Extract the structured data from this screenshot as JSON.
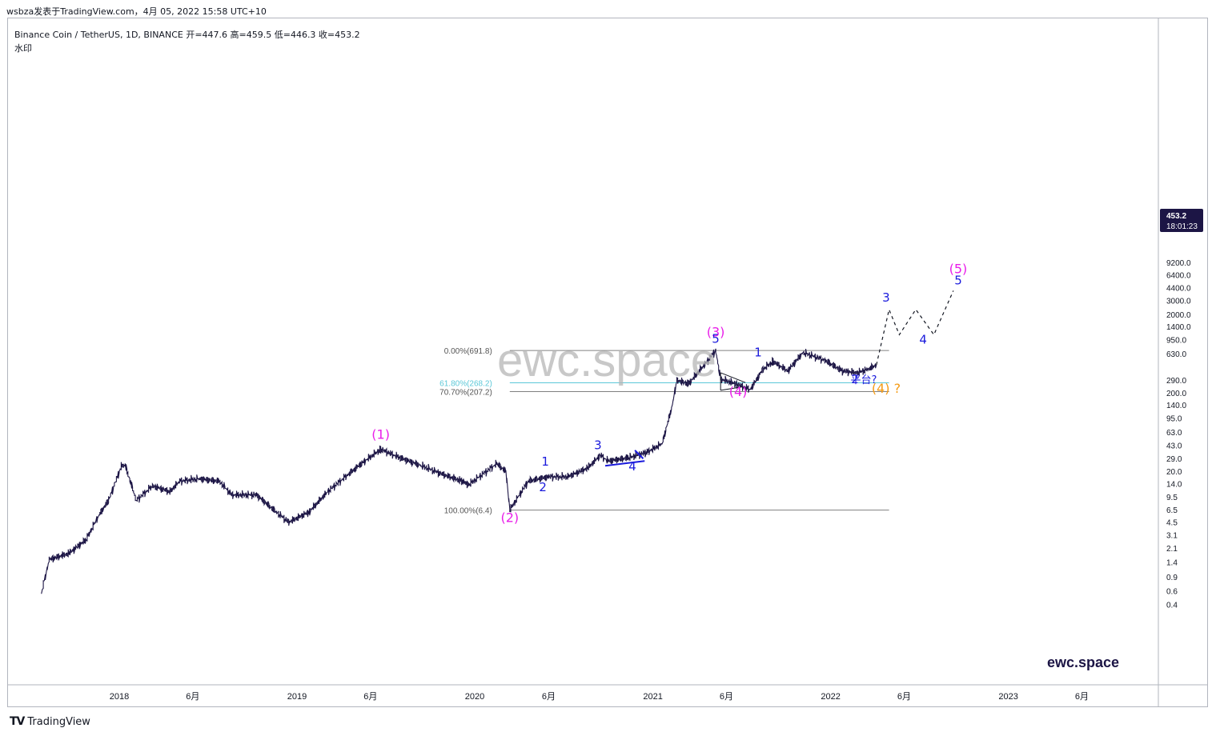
{
  "header": {
    "publish_info": "wsbza发表于TradingView.com，4月 05, 2022 15:58 UTC+10",
    "symbol_line": "Binance Coin / TetherUS, 1D, BINANCE  开=447.6  高=459.5  低=446.3  收=453.2",
    "sub_label": "水印"
  },
  "footer": {
    "brand": "TradingView",
    "logo": "TV"
  },
  "watermark": {
    "center_text": "ewc.space",
    "corner_text": "ewc.space"
  },
  "price_badge": {
    "price": "453.2",
    "countdown": "18:01:23"
  },
  "colors": {
    "candles": "#1c1545",
    "grid_line": "#808080",
    "fib_cyan": "#5bc8d8",
    "magenta": "#e91ee9",
    "blue": "#1a1adc",
    "orange": "#f59b14",
    "badge_bg": "#1c1545"
  },
  "chart_data": {
    "type": "line",
    "scale": "log",
    "title": "Binance Coin / TetherUS, 1D, BINANCE",
    "ylim": [
      0.3,
      11000
    ],
    "y_ticks": [
      "9200.0",
      "6400.0",
      "4400.0",
      "3000.0",
      "2000.0",
      "1400.0",
      "950.0",
      "630.0",
      "290.0",
      "200.0",
      "140.0",
      "95.0",
      "63.0",
      "43.0",
      "29.0",
      "20.0",
      "14.0",
      "9.5",
      "6.5",
      "4.5",
      "3.1",
      "2.1",
      "1.4",
      "0.9",
      "0.6",
      "0.4"
    ],
    "x_ticks": [
      "2018",
      "6月",
      "2019",
      "6月",
      "2020",
      "6月",
      "2021",
      "6月",
      "2022",
      "6月",
      "2023",
      "6月"
    ],
    "series": [
      {
        "values_note": "",
        "points": [
          [
            "2017-07-25",
            0.55
          ],
          [
            "2017-08-10",
            1.5
          ],
          [
            "2017-09-20",
            1.8
          ],
          [
            "2017-10-25",
            2.7
          ],
          [
            "2017-11-20",
            5.5
          ],
          [
            "2017-12-10",
            8.5
          ],
          [
            "2018-01-05",
            23
          ],
          [
            "2018-01-13",
            24
          ],
          [
            "2018-02-05",
            8.5
          ],
          [
            "2018-03-10",
            13
          ],
          [
            "2018-04-15",
            11
          ],
          [
            "2018-05-05",
            15
          ],
          [
            "2018-06-15",
            16
          ],
          [
            "2018-07-25",
            15
          ],
          [
            "2018-08-20",
            10
          ],
          [
            "2018-10-10",
            10
          ],
          [
            "2018-11-20",
            6
          ],
          [
            "2018-12-15",
            4.5
          ],
          [
            "2019-01-25",
            6
          ],
          [
            "2019-03-05",
            11
          ],
          [
            "2019-04-15",
            18
          ],
          [
            "2019-05-20",
            27
          ],
          [
            "2019-06-22",
            38
          ],
          [
            "2019-07-30",
            30
          ],
          [
            "2019-09-10",
            24
          ],
          [
            "2019-10-20",
            19
          ],
          [
            "2019-12-05",
            15
          ],
          [
            "2019-12-20",
            13.5
          ],
          [
            "2020-02-15",
            25
          ],
          [
            "2020-03-05",
            20
          ],
          [
            "2020-03-13",
            6.4
          ],
          [
            "2020-04-20",
            15
          ],
          [
            "2020-06-01",
            17
          ],
          [
            "2020-07-10",
            17
          ],
          [
            "2020-08-20",
            22
          ],
          [
            "2020-09-15",
            32
          ],
          [
            "2020-10-01",
            27
          ],
          [
            "2020-11-15",
            30
          ],
          [
            "2020-12-20",
            35
          ],
          [
            "2021-01-20",
            45
          ],
          [
            "2021-02-10",
            140
          ],
          [
            "2021-02-19",
            290
          ],
          [
            "2021-03-15",
            260
          ],
          [
            "2021-04-20",
            480
          ],
          [
            "2021-05-10",
            691.8
          ],
          [
            "2021-05-20",
            300
          ],
          [
            "2021-06-20",
            260
          ],
          [
            "2021-07-20",
            220
          ],
          [
            "2021-08-15",
            400
          ],
          [
            "2021-09-05",
            500
          ],
          [
            "2021-10-05",
            380
          ],
          [
            "2021-11-05",
            650
          ],
          [
            "2021-12-20",
            520
          ],
          [
            "2022-01-25",
            380
          ],
          [
            "2022-02-25",
            360
          ],
          [
            "2022-03-20",
            400
          ],
          [
            "2022-04-05",
            453.2
          ]
        ]
      }
    ],
    "projection": [
      [
        "2022-04-05",
        453.2
      ],
      [
        "2022-05-01",
        2300
      ],
      [
        "2022-05-22",
        1100
      ],
      [
        "2022-06-25",
        2300
      ],
      [
        "2022-08-01",
        1100
      ],
      [
        "2022-09-10",
        4000
      ]
    ],
    "fib_levels": [
      {
        "label": "0.00%(691.8)",
        "price": 691.8,
        "color": "#808080"
      },
      {
        "label": "61.80%(268.2)",
        "price": 268.2,
        "color": "#5bc8d8"
      },
      {
        "label": "70.70%(207.2)",
        "price": 207.2,
        "color": "#808080"
      },
      {
        "label": "100.00%(6.4)",
        "price": 6.4,
        "color": "#808080"
      }
    ],
    "wave_labels": [
      {
        "text": "(1)",
        "date": "2019-06-22",
        "price": 52,
        "color": "#e91ee9"
      },
      {
        "text": "(2)",
        "date": "2020-03-13",
        "price": 4.5,
        "color": "#e91ee9"
      },
      {
        "text": "(3)",
        "date": "2021-05-10",
        "price": 1050,
        "color": "#e91ee9"
      },
      {
        "text": "5",
        "date": "2021-05-10",
        "price": 870,
        "color": "#1a1adc"
      },
      {
        "text": "(4)",
        "date": "2021-06-25",
        "price": 182,
        "color": "#e91ee9"
      },
      {
        "text": "1",
        "date": "2020-05-25",
        "price": 23.5,
        "color": "#1a1adc"
      },
      {
        "text": "2",
        "date": "2020-05-20",
        "price": 11.2,
        "color": "#1a1adc"
      },
      {
        "text": "3",
        "date": "2020-09-10",
        "price": 38,
        "color": "#1a1adc"
      },
      {
        "text": "4",
        "date": "2020-11-20",
        "price": 20.5,
        "color": "#1a1adc"
      },
      {
        "text": "1",
        "date": "2021-08-05",
        "price": 580,
        "color": "#1a1adc"
      },
      {
        "text": "2",
        "date": "2022-02-20",
        "price": 265,
        "color": "#1a1adc"
      },
      {
        "text": "平台?",
        "date": "2022-03-10",
        "price": 265,
        "color": "#1a1adc"
      },
      {
        "text": "(4) ?",
        "date": "2022-04-25",
        "price": 200,
        "color": "#f59b14"
      },
      {
        "text": "3",
        "date": "2022-04-25",
        "price": 2900,
        "color": "#1a1adc"
      },
      {
        "text": "4",
        "date": "2022-07-10",
        "price": 850,
        "color": "#1a1adc"
      },
      {
        "text": "5",
        "date": "2022-09-20",
        "price": 4800,
        "color": "#1a1adc"
      },
      {
        "text": "(5)",
        "date": "2022-09-20",
        "price": 6700,
        "color": "#e91ee9"
      }
    ]
  }
}
